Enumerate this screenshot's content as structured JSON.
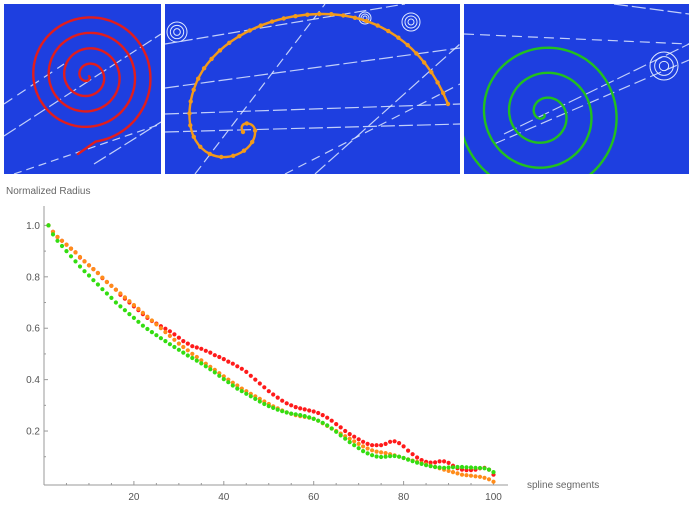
{
  "images": [
    {
      "name": "red-spiral-track-image",
      "track_color": "#e11d1d",
      "marker": "none"
    },
    {
      "name": "orange-spiral-track-image",
      "track_color": "#f39a1a",
      "marker": "dots"
    },
    {
      "name": "green-spiral-track-image",
      "track_color": "#22c01f",
      "marker": "none"
    }
  ],
  "colors": {
    "chamber_background": "#1e3fe0",
    "background_streak": "#dfe9ff"
  },
  "chart_data": {
    "type": "scatter",
    "title": "",
    "xlabel": "spline segments",
    "ylabel": "Normalized Radius",
    "xlim": [
      0,
      101
    ],
    "ylim": [
      -0.01,
      1.06
    ],
    "xticks": [
      20,
      40,
      60,
      80,
      100
    ],
    "yticks": [
      0.2,
      0.4,
      0.6,
      0.8,
      1.0
    ],
    "xtick_labels": [
      "20",
      "40",
      "60",
      "80",
      "100"
    ],
    "ytick_labels": [
      "0.2",
      "0.4",
      "0.6",
      "0.8",
      "1.0"
    ],
    "grid": false,
    "x": [
      1,
      2,
      3,
      4,
      5,
      6,
      7,
      8,
      9,
      10,
      11,
      12,
      13,
      14,
      15,
      16,
      17,
      18,
      19,
      20,
      21,
      22,
      23,
      24,
      25,
      26,
      27,
      28,
      29,
      30,
      31,
      32,
      33,
      34,
      35,
      36,
      37,
      38,
      39,
      40,
      41,
      42,
      43,
      44,
      45,
      46,
      47,
      48,
      49,
      50,
      51,
      52,
      53,
      54,
      55,
      56,
      57,
      58,
      59,
      60,
      61,
      62,
      63,
      64,
      65,
      66,
      67,
      68,
      69,
      70,
      71,
      72,
      73,
      74,
      75,
      76,
      77,
      78,
      79,
      80,
      81,
      82,
      83,
      84,
      85,
      86,
      87,
      88,
      89,
      90,
      91,
      92,
      93,
      94,
      95,
      96,
      97,
      98,
      99,
      100
    ],
    "series": [
      {
        "color": "#ff1a1a",
        "values": [
          1.0,
          0.975,
          0.955,
          0.94,
          0.925,
          0.91,
          0.895,
          0.875,
          0.86,
          0.845,
          0.83,
          0.815,
          0.795,
          0.78,
          0.765,
          0.75,
          0.73,
          0.715,
          0.7,
          0.685,
          0.67,
          0.655,
          0.64,
          0.628,
          0.618,
          0.608,
          0.598,
          0.588,
          0.576,
          0.563,
          0.55,
          0.54,
          0.53,
          0.525,
          0.52,
          0.512,
          0.505,
          0.495,
          0.488,
          0.48,
          0.47,
          0.462,
          0.452,
          0.442,
          0.43,
          0.415,
          0.4,
          0.385,
          0.37,
          0.355,
          0.342,
          0.33,
          0.318,
          0.308,
          0.3,
          0.293,
          0.288,
          0.284,
          0.28,
          0.276,
          0.27,
          0.262,
          0.252,
          0.24,
          0.227,
          0.214,
          0.2,
          0.188,
          0.178,
          0.168,
          0.158,
          0.15,
          0.145,
          0.145,
          0.145,
          0.15,
          0.158,
          0.16,
          0.153,
          0.14,
          0.124,
          0.11,
          0.097,
          0.087,
          0.08,
          0.077,
          0.078,
          0.082,
          0.082,
          0.076,
          0.065,
          0.055,
          0.05,
          0.048,
          0.048,
          0.05,
          0.055,
          0.057,
          0.05,
          0.03
        ]
      },
      {
        "color": "#ff8c1a",
        "values": [
          1.0,
          0.975,
          0.955,
          0.94,
          0.925,
          0.91,
          0.895,
          0.877,
          0.86,
          0.845,
          0.83,
          0.815,
          0.797,
          0.78,
          0.765,
          0.75,
          0.735,
          0.72,
          0.705,
          0.69,
          0.675,
          0.66,
          0.645,
          0.63,
          0.615,
          0.6,
          0.585,
          0.57,
          0.555,
          0.54,
          0.527,
          0.514,
          0.5,
          0.488,
          0.475,
          0.462,
          0.45,
          0.438,
          0.425,
          0.413,
          0.4,
          0.388,
          0.377,
          0.365,
          0.355,
          0.345,
          0.335,
          0.325,
          0.315,
          0.305,
          0.296,
          0.288,
          0.28,
          0.273,
          0.267,
          0.262,
          0.258,
          0.255,
          0.252,
          0.248,
          0.24,
          0.23,
          0.22,
          0.21,
          0.2,
          0.19,
          0.18,
          0.17,
          0.16,
          0.15,
          0.14,
          0.132,
          0.125,
          0.12,
          0.117,
          0.114,
          0.11,
          0.105,
          0.1,
          0.095,
          0.09,
          0.085,
          0.08,
          0.075,
          0.07,
          0.065,
          0.06,
          0.055,
          0.05,
          0.045,
          0.04,
          0.035,
          0.03,
          0.028,
          0.026,
          0.024,
          0.022,
          0.018,
          0.012,
          0.003
        ]
      },
      {
        "color": "#33dd11",
        "values": [
          1.0,
          0.965,
          0.94,
          0.92,
          0.9,
          0.88,
          0.86,
          0.84,
          0.822,
          0.805,
          0.787,
          0.77,
          0.752,
          0.735,
          0.718,
          0.7,
          0.685,
          0.67,
          0.655,
          0.64,
          0.625,
          0.61,
          0.597,
          0.585,
          0.573,
          0.561,
          0.55,
          0.538,
          0.527,
          0.516,
          0.505,
          0.494,
          0.484,
          0.474,
          0.463,
          0.452,
          0.44,
          0.428,
          0.415,
          0.402,
          0.39,
          0.377,
          0.365,
          0.355,
          0.345,
          0.335,
          0.325,
          0.315,
          0.305,
          0.297,
          0.29,
          0.283,
          0.277,
          0.272,
          0.268,
          0.265,
          0.262,
          0.258,
          0.253,
          0.247,
          0.24,
          0.232,
          0.222,
          0.21,
          0.197,
          0.183,
          0.17,
          0.157,
          0.145,
          0.133,
          0.122,
          0.113,
          0.106,
          0.101,
          0.099,
          0.1,
          0.102,
          0.103,
          0.1,
          0.095,
          0.089,
          0.083,
          0.077,
          0.072,
          0.067,
          0.063,
          0.06,
          0.058,
          0.057,
          0.058,
          0.059,
          0.06,
          0.06,
          0.059,
          0.058,
          0.057,
          0.056,
          0.055,
          0.05,
          0.04
        ]
      }
    ]
  }
}
